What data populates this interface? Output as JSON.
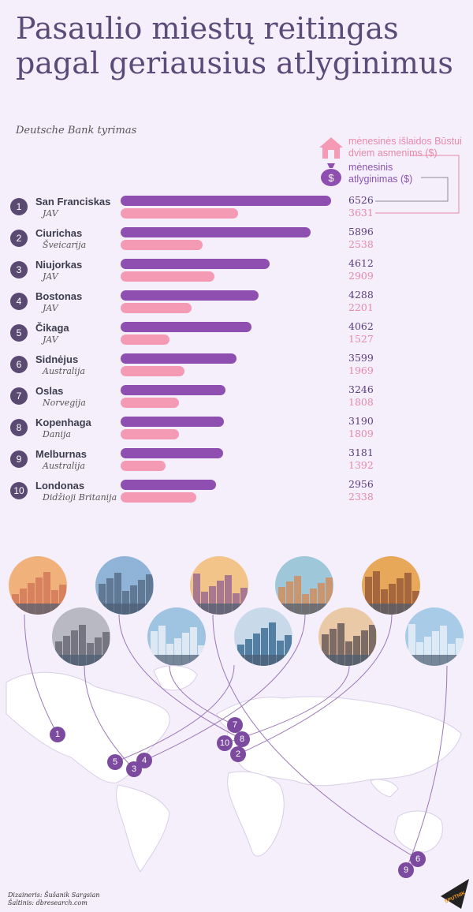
{
  "title": "Pasaulio miestų reitingas pagal geriausius atlyginimus",
  "subtitle": "Deutsche Bank tyrimas",
  "legend": {
    "expenses": "mėnesinės išlaidos Būstui dviem asmenims ($)",
    "salary": "mėnesinis atlyginimas ($)",
    "expenses_icon": "house-icon",
    "salary_icon": "money-bag-icon"
  },
  "colors": {
    "salary": "#8e4fb0",
    "expenses": "#f49ab5",
    "rank": "#5a4a72",
    "background": "#f5eefb"
  },
  "chart_data": {
    "type": "bar",
    "title": "Pasaulio miestų reitingas pagal geriausius atlyginimus",
    "categories": [
      "San Franciskas",
      "Ciurichas",
      "Niujorkas",
      "Bostonas",
      "Čikaga",
      "Sidnėjus",
      "Oslas",
      "Kopenhaga",
      "Melburnas",
      "Londonas"
    ],
    "countries": [
      "JAV",
      "Šveicarija",
      "JAV",
      "JAV",
      "JAV",
      "Australija",
      "Norvegija",
      "Danija",
      "Australija",
      "Didžioji Britanija"
    ],
    "ranks": [
      "1",
      "2",
      "3",
      "4",
      "5",
      "6",
      "7",
      "8",
      "9",
      "10"
    ],
    "series": [
      {
        "name": "mėnesinis atlyginimas ($)",
        "values": [
          6526,
          5896,
          4612,
          4288,
          4062,
          3599,
          3246,
          3190,
          3181,
          2956
        ]
      },
      {
        "name": "mėnesinės išlaidos Būstui dviem asmenims ($)",
        "values": [
          3631,
          2538,
          2909,
          2201,
          1527,
          1969,
          1808,
          1809,
          1392,
          2338
        ]
      }
    ],
    "xlim": [
      0,
      6526
    ],
    "orientation": "horizontal"
  },
  "map_markers": [
    "1",
    "5",
    "3",
    "4",
    "7",
    "8",
    "10",
    "2",
    "9",
    "6"
  ],
  "credits": {
    "designer": "Dizaineris: Šušanik Sargsian",
    "source": "Šaltinis: dbresearch.com"
  },
  "logo": "SPUTNIK"
}
